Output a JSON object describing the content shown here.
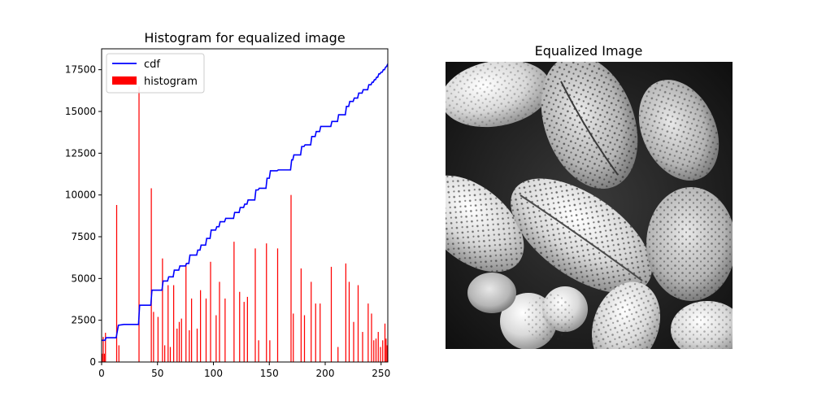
{
  "chart_data": [
    {
      "type": "bar",
      "title": "Histogram for equalized image",
      "xlabel": "",
      "ylabel": "",
      "xlim": [
        0,
        256
      ],
      "ylim": [
        0,
        18750
      ],
      "xticks": [
        0,
        50,
        100,
        150,
        200,
        250
      ],
      "xtick_labels": [
        "0",
        "50",
        "100",
        "150",
        "200",
        "250"
      ],
      "yticks": [
        0,
        2500,
        5000,
        7500,
        10000,
        12500,
        15000,
        17500
      ],
      "ytick_labels": [
        "0",
        "2500",
        "5000",
        "7500",
        "10000",
        "12500",
        "15000",
        "17500"
      ],
      "grid": false,
      "legend": {
        "placement": "upper-left",
        "entries": [
          {
            "label": "cdf",
            "kind": "line",
            "color": "#0000ff"
          },
          {
            "label": "histogram",
            "kind": "patch",
            "color": "#ff0000"
          }
        ]
      },
      "series": [
        {
          "name": "histogram",
          "kind": "bar",
          "color": "#ff0000",
          "bins": [
            0,
            1,
            2,
            3,
            13,
            15,
            33,
            44,
            46,
            50,
            54,
            56,
            59,
            61,
            64,
            67,
            69,
            71,
            75,
            78,
            80,
            85,
            88,
            93,
            97,
            102,
            105,
            110,
            118,
            123,
            127,
            130,
            137,
            140,
            147,
            150,
            157,
            169,
            171,
            178,
            181,
            187,
            191,
            195,
            205,
            211,
            218,
            221,
            225,
            229,
            233,
            238,
            241,
            243,
            245,
            247,
            249,
            251,
            253,
            254,
            255
          ],
          "values": [
            500,
            1500,
            500,
            1750,
            9400,
            1000,
            16500,
            10400,
            3000,
            2700,
            6200,
            1000,
            4600,
            900,
            4600,
            2000,
            2400,
            2600,
            5900,
            1900,
            3800,
            2000,
            4300,
            3800,
            6000,
            2800,
            4800,
            3800,
            7200,
            4200,
            3600,
            3900,
            6800,
            1300,
            7100,
            1300,
            6800,
            10000,
            2900,
            5600,
            2800,
            4800,
            3500,
            3500,
            5700,
            900,
            5900,
            4800,
            2400,
            4600,
            1800,
            3500,
            2900,
            1300,
            1400,
            1800,
            900,
            1300,
            2300,
            1400,
            1000
          ]
        },
        {
          "name": "cdf",
          "kind": "line",
          "color": "#0000ff",
          "x": [
            0,
            3,
            4,
            13,
            15,
            20,
            33,
            34,
            44,
            45,
            54,
            55,
            59,
            60,
            64,
            65,
            69,
            70,
            75,
            76,
            78,
            79,
            85,
            86,
            88,
            89,
            93,
            94,
            97,
            98,
            102,
            103,
            105,
            106,
            110,
            111,
            118,
            119,
            123,
            124,
            127,
            128,
            130,
            131,
            137,
            138,
            140,
            141,
            147,
            148,
            150,
            151,
            157,
            158,
            169,
            170,
            171,
            172,
            178,
            179,
            181,
            182,
            187,
            188,
            191,
            192,
            195,
            196,
            205,
            206,
            211,
            212,
            218,
            219,
            221,
            222,
            225,
            226,
            229,
            230,
            233,
            234,
            238,
            239,
            241,
            242,
            243,
            244,
            245,
            246,
            247,
            248,
            249,
            250,
            251,
            252,
            253,
            254,
            255,
            256
          ],
          "y": [
            1300,
            1300,
            1450,
            1450,
            2200,
            2250,
            2250,
            3400,
            3400,
            4300,
            4300,
            4850,
            4850,
            5100,
            5100,
            5500,
            5500,
            5750,
            5750,
            5900,
            5900,
            6400,
            6400,
            6700,
            6700,
            7000,
            7000,
            7400,
            7400,
            7900,
            7900,
            8100,
            8100,
            8400,
            8400,
            8600,
            8600,
            8950,
            8950,
            9250,
            9250,
            9450,
            9450,
            9700,
            9700,
            10300,
            10300,
            10400,
            10400,
            11000,
            11000,
            11450,
            11450,
            11500,
            11500,
            12100,
            12100,
            12400,
            12400,
            12900,
            12900,
            13000,
            13000,
            13500,
            13500,
            13800,
            13800,
            14100,
            14100,
            14400,
            14400,
            14800,
            14800,
            15300,
            15300,
            15600,
            15600,
            15800,
            15800,
            16100,
            16100,
            16300,
            16300,
            16600,
            16600,
            16750,
            16750,
            16900,
            16900,
            17050,
            17050,
            17250,
            17250,
            17350,
            17350,
            17500,
            17500,
            17650,
            17700,
            17850
          ]
        }
      ]
    },
    {
      "type": "image",
      "title": "Equalized Image",
      "axes": "off",
      "colormap": "grayscale"
    }
  ]
}
